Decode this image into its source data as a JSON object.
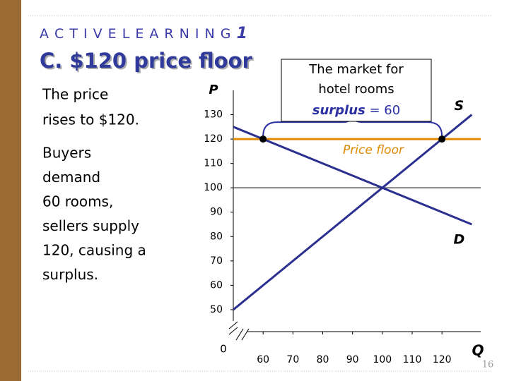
{
  "slide": {
    "kicker": "A C T I V E  L E A R N I N G",
    "kicker_number": "1",
    "title": "C. $120 price floor",
    "para1": [
      "The price",
      "rises to $120."
    ],
    "para2": [
      "Buyers",
      "demand",
      "60 rooms,",
      "sellers supply",
      "120, causing a",
      "surplus."
    ],
    "page_number": "16"
  },
  "chart_data": {
    "type": "line",
    "title": "The market for hotel rooms",
    "y_label": "P",
    "x_label": "Q",
    "origin_label": "0",
    "xlim": [
      50,
      133
    ],
    "ylim": [
      41,
      140
    ],
    "xticks": [
      60,
      70,
      80,
      90,
      100,
      110,
      120
    ],
    "yticks": [
      50,
      60,
      70,
      80,
      90,
      100,
      110,
      120,
      130
    ],
    "series": [
      {
        "name": "S",
        "color": "#2b2f8f",
        "x": [
          50,
          130
        ],
        "values": [
          50,
          130
        ]
      },
      {
        "name": "D",
        "color": "#2b2f8f",
        "x": [
          50,
          130
        ],
        "values": [
          125,
          85
        ]
      }
    ],
    "reference_line": 100,
    "price_floor": {
      "label": "Price floor",
      "value": 120,
      "color": "#e08a00"
    },
    "points": {
      "x": [
        60,
        120
      ],
      "values": [
        120,
        120
      ]
    },
    "surplus": {
      "label": "surplus",
      "value_label": "= 60"
    }
  }
}
